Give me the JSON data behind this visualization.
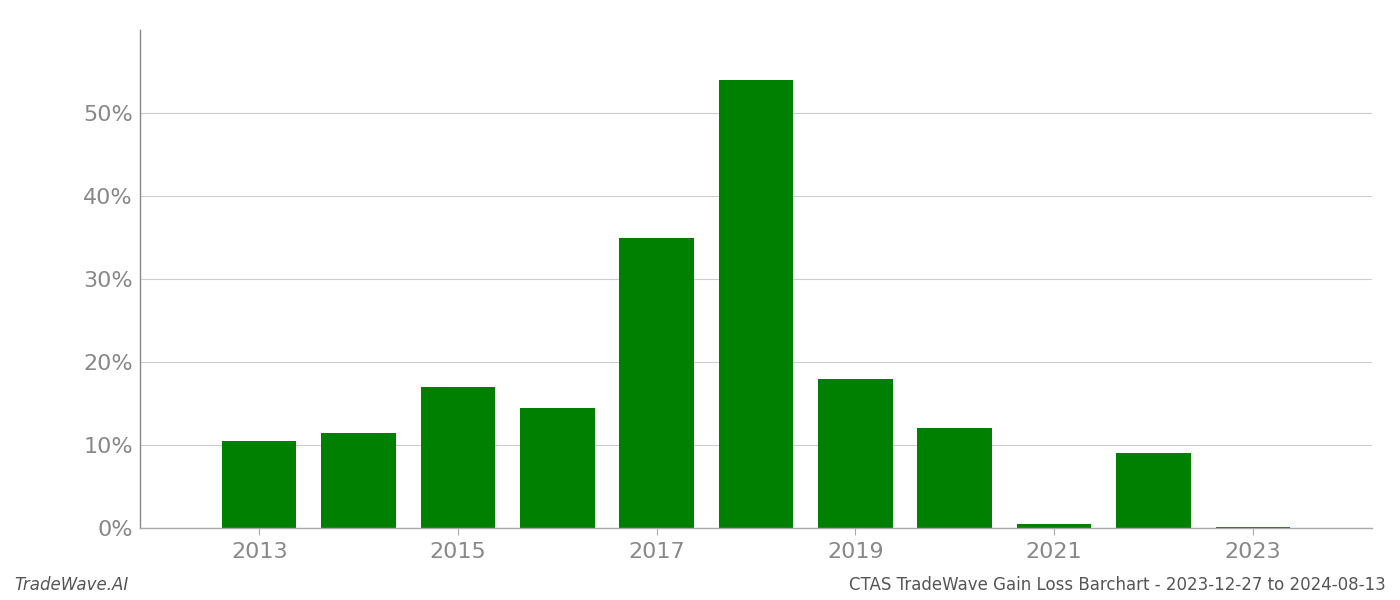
{
  "years": [
    2013,
    2014,
    2015,
    2016,
    2017,
    2018,
    2019,
    2020,
    2021,
    2022,
    2023
  ],
  "values": [
    0.105,
    0.115,
    0.17,
    0.145,
    0.35,
    0.54,
    0.18,
    0.12,
    0.005,
    0.09,
    0.001
  ],
  "bar_color": "#008000",
  "background_color": "#ffffff",
  "grid_color": "#cccccc",
  "ytick_labels": [
    "0%",
    "10%",
    "20%",
    "30%",
    "40%",
    "50%"
  ],
  "ytick_values": [
    0.0,
    0.1,
    0.2,
    0.3,
    0.4,
    0.5
  ],
  "xtick_years": [
    2013,
    2015,
    2017,
    2019,
    2021,
    2023
  ],
  "ylim": [
    0,
    0.6
  ],
  "footer_left": "TradeWave.AI",
  "footer_right": "CTAS TradeWave Gain Loss Barchart - 2023-12-27 to 2024-08-13",
  "bar_width": 0.75,
  "tick_fontsize": 16,
  "footer_fontsize": 12,
  "xlim_left": 2011.8,
  "xlim_right": 2024.2
}
